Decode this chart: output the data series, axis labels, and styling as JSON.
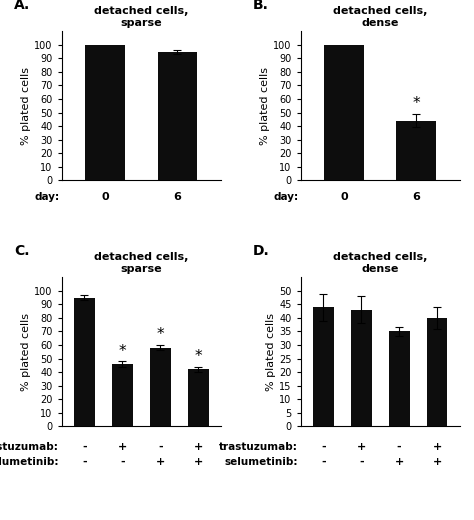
{
  "panel_A": {
    "title": "detached cells,\nsparse",
    "label": "A.",
    "values": [
      100,
      95
    ],
    "errors": [
      0,
      1.5
    ],
    "x_labels": [
      "0",
      "6"
    ],
    "xlabel": "day:",
    "ylabel": "% plated cells",
    "ylim": [
      0,
      110
    ],
    "yticks": [
      0,
      10,
      20,
      30,
      40,
      50,
      60,
      70,
      80,
      90,
      100
    ],
    "star": [
      false,
      false
    ]
  },
  "panel_B": {
    "title": "detached cells,\ndense",
    "label": "B.",
    "values": [
      100,
      44
    ],
    "errors": [
      0,
      5
    ],
    "x_labels": [
      "0",
      "6"
    ],
    "xlabel": "day:",
    "ylabel": "% plated cells",
    "ylim": [
      0,
      110
    ],
    "yticks": [
      0,
      10,
      20,
      30,
      40,
      50,
      60,
      70,
      80,
      90,
      100
    ],
    "star": [
      false,
      true
    ]
  },
  "panel_C": {
    "title": "detached cells,\nsparse",
    "label": "C.",
    "values": [
      95,
      46,
      58,
      42
    ],
    "errors": [
      2,
      2,
      2,
      2
    ],
    "trastuzumab_labels": [
      "-",
      "+",
      "-",
      "+"
    ],
    "selumetinib_labels": [
      "-",
      "-",
      "+",
      "+"
    ],
    "xlabel_trastuzumab": "trastuzumab:",
    "xlabel_selumetinib": "selumetinib:",
    "ylabel": "% plated cells",
    "ylim": [
      0,
      110
    ],
    "yticks": [
      0,
      10,
      20,
      30,
      40,
      50,
      60,
      70,
      80,
      90,
      100
    ],
    "star": [
      false,
      true,
      true,
      true
    ]
  },
  "panel_D": {
    "title": "detached cells,\ndense",
    "label": "D.",
    "values": [
      44,
      43,
      35,
      40
    ],
    "errors": [
      5,
      5,
      1.5,
      4
    ],
    "trastuzumab_labels": [
      "-",
      "+",
      "-",
      "+"
    ],
    "selumetinib_labels": [
      "-",
      "-",
      "+",
      "+"
    ],
    "xlabel_trastuzumab": "trastuzumab:",
    "xlabel_selumetinib": "selumetinib:",
    "ylabel": "% plated cells",
    "ylim": [
      0,
      55
    ],
    "yticks": [
      0,
      5,
      10,
      15,
      20,
      25,
      30,
      35,
      40,
      45,
      50
    ],
    "star": [
      false,
      false,
      false,
      false
    ]
  },
  "bar_color": "#0d0d0d",
  "bar_width": 0.55,
  "background_color": "#ffffff",
  "title_fontsize": 8,
  "label_fontsize": 10,
  "tick_fontsize": 7,
  "axis_label_fontsize": 8,
  "xlabel_fontsize": 7.5
}
